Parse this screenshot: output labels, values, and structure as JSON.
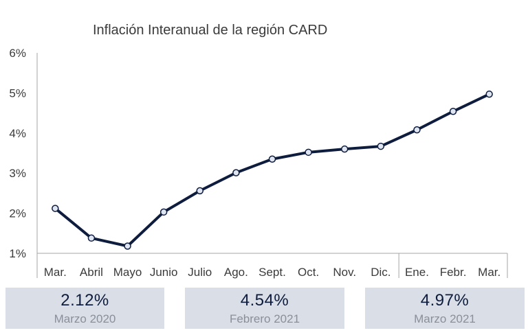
{
  "chart_data": {
    "type": "line",
    "title": "Inflación Interanual de la región CARD",
    "categories": [
      "Mar.",
      "Abril",
      "Mayo",
      "Junio",
      "Julio",
      "Ago.",
      "Sept.",
      "Oct.",
      "Nov.",
      "Dic.",
      "Ene.",
      "Febr.",
      "Mar."
    ],
    "values": [
      2.12,
      1.38,
      1.18,
      2.03,
      2.56,
      3.01,
      3.35,
      3.52,
      3.6,
      3.67,
      4.08,
      4.54,
      4.97
    ],
    "ylim": [
      1,
      6
    ],
    "yticks": [
      "1%",
      "2%",
      "3%",
      "4%",
      "5%",
      "6%"
    ],
    "year_divider_after_index": 9,
    "colors": {
      "line": "#0e1c3d",
      "marker_fill": "#dfe6f2",
      "callout_bg": "#d9dee7"
    }
  },
  "callouts": [
    {
      "value": "2.12%",
      "label": "Marzo 2020"
    },
    {
      "value": "4.54%",
      "label": "Febrero 2021"
    },
    {
      "value": "4.97%",
      "label": "Marzo 2021"
    }
  ]
}
